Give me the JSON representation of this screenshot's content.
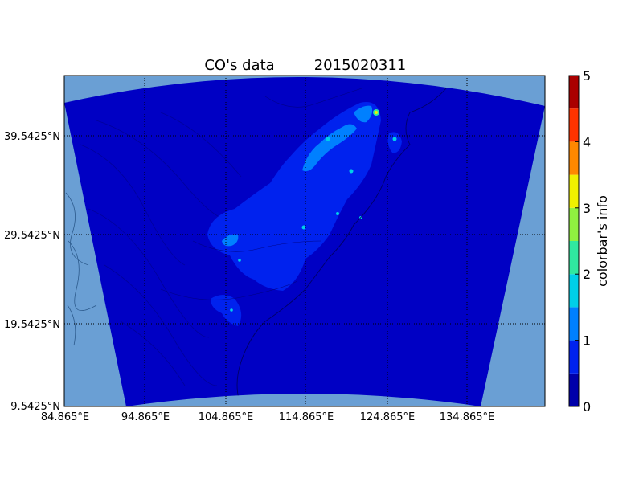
{
  "chart_data": {
    "type": "heatmap",
    "title": "CO's data",
    "timestamp": "2015020311",
    "colorbar": {
      "label": "colorbar's info",
      "ticks": [
        "0",
        "1",
        "2",
        "3",
        "4",
        "5"
      ],
      "range": [
        0,
        5
      ],
      "levels": [
        {
          "from": 0.0,
          "to": 0.5,
          "color": "#0000aa"
        },
        {
          "from": 0.5,
          "to": 1.0,
          "color": "#0022ee"
        },
        {
          "from": 1.0,
          "to": 1.5,
          "color": "#0080ff"
        },
        {
          "from": 1.5,
          "to": 2.0,
          "color": "#00d0e8"
        },
        {
          "from": 2.0,
          "to": 2.5,
          "color": "#30e8a0"
        },
        {
          "from": 2.5,
          "to": 3.0,
          "color": "#90f040"
        },
        {
          "from": 3.0,
          "to": 3.5,
          "color": "#f0f000"
        },
        {
          "from": 3.5,
          "to": 4.0,
          "color": "#ff8800"
        },
        {
          "from": 4.0,
          "to": 4.5,
          "color": "#ff3300"
        },
        {
          "from": 4.5,
          "to": 5.0,
          "color": "#aa0000"
        }
      ]
    },
    "x_ticks": [
      "84.865°E",
      "94.865°E",
      "104.865°E",
      "114.865°E",
      "124.865°E",
      "134.865°E"
    ],
    "y_ticks": [
      "39.5425°N",
      "29.5425°N",
      "19.5425°N",
      "9.5425°N"
    ],
    "grid": true,
    "colors": {
      "outside_domain": "#6a9fd4",
      "field_background": "#0000c4",
      "plume_level_1": "#0022ee",
      "plume_level_2": "#0080ff",
      "coastline": "#000066"
    }
  }
}
